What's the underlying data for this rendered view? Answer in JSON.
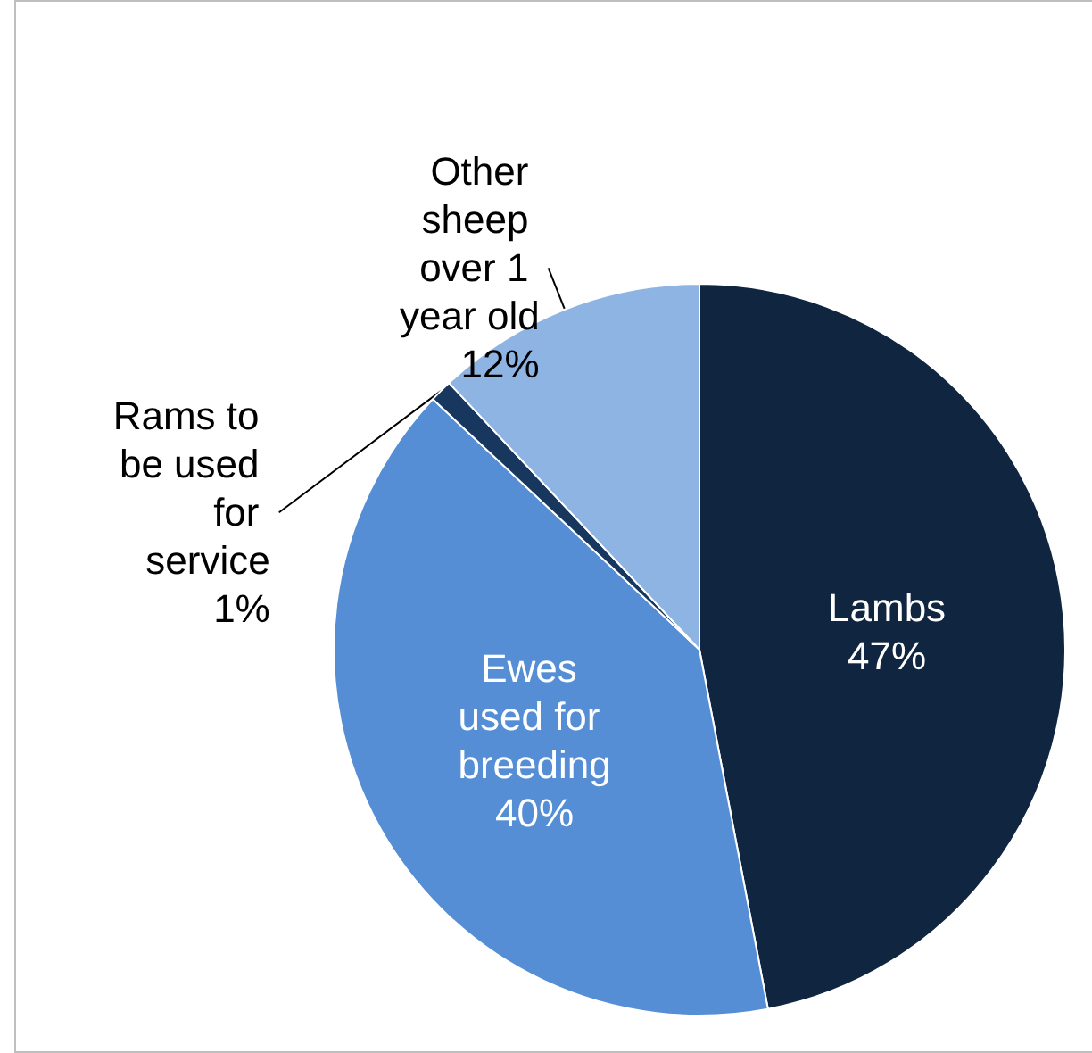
{
  "chart_data": {
    "type": "pie",
    "categories": [
      "Lambs",
      "Ewes used for breeding",
      "Rams to be used for service",
      "Other sheep over 1 year old"
    ],
    "values": [
      47,
      40,
      1,
      12
    ],
    "colors": [
      "#10253f",
      "#558ed5",
      "#17375e",
      "#8eb4e3"
    ],
    "value_labels": [
      "47%",
      "40%",
      "1%",
      "12%"
    ],
    "legend": false
  }
}
